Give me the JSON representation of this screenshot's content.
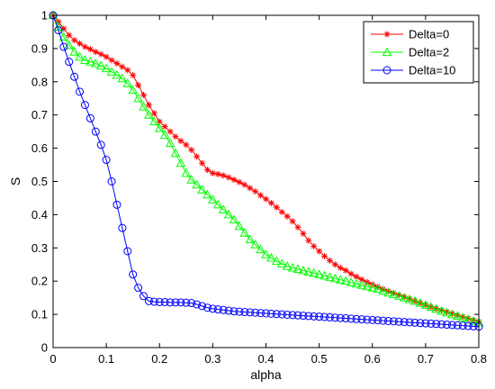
{
  "chart_data": {
    "type": "line",
    "title": "",
    "xlabel": "alpha",
    "ylabel": "S",
    "xlim": [
      0,
      0.8
    ],
    "ylim": [
      0,
      1
    ],
    "xticks": [
      0,
      0.1,
      0.2,
      0.3,
      0.4,
      0.5,
      0.6,
      0.7,
      0.8
    ],
    "yticks": [
      0,
      0.1,
      0.2,
      0.3,
      0.4,
      0.5,
      0.6,
      0.7,
      0.8,
      0.9,
      1
    ],
    "xtick_labels": [
      "0",
      "0.1",
      "0.2",
      "0.3",
      "0.4",
      "0.5",
      "0.6",
      "0.7",
      "0.8"
    ],
    "ytick_labels": [
      "0",
      "0.1",
      "0.2",
      "0.3",
      "0.4",
      "0.5",
      "0.6",
      "0.7",
      "0.8",
      "0.9",
      "1"
    ],
    "grid": false,
    "legend_position": "top-right",
    "series": [
      {
        "name": "Delta=0",
        "color": "#ff0000",
        "marker": "asterisk",
        "x": [
          0,
          0.01,
          0.02,
          0.03,
          0.04,
          0.05,
          0.06,
          0.07,
          0.08,
          0.09,
          0.1,
          0.11,
          0.12,
          0.13,
          0.14,
          0.15,
          0.16,
          0.17,
          0.18,
          0.19,
          0.2,
          0.21,
          0.22,
          0.23,
          0.24,
          0.25,
          0.26,
          0.27,
          0.28,
          0.29,
          0.3,
          0.31,
          0.32,
          0.33,
          0.34,
          0.35,
          0.36,
          0.37,
          0.38,
          0.39,
          0.4,
          0.41,
          0.42,
          0.43,
          0.44,
          0.45,
          0.46,
          0.47,
          0.48,
          0.49,
          0.5,
          0.51,
          0.52,
          0.53,
          0.54,
          0.55,
          0.56,
          0.57,
          0.58,
          0.59,
          0.6,
          0.61,
          0.62,
          0.63,
          0.64,
          0.65,
          0.66,
          0.67,
          0.68,
          0.69,
          0.7,
          0.71,
          0.72,
          0.73,
          0.74,
          0.75,
          0.76,
          0.77,
          0.78,
          0.79,
          0.8
        ],
        "y": [
          1.0,
          0.98,
          0.96,
          0.94,
          0.925,
          0.915,
          0.905,
          0.898,
          0.89,
          0.883,
          0.875,
          0.865,
          0.855,
          0.845,
          0.835,
          0.82,
          0.79,
          0.76,
          0.73,
          0.705,
          0.68,
          0.665,
          0.65,
          0.635,
          0.622,
          0.61,
          0.595,
          0.575,
          0.555,
          0.535,
          0.525,
          0.522,
          0.518,
          0.512,
          0.505,
          0.498,
          0.49,
          0.48,
          0.47,
          0.458,
          0.447,
          0.435,
          0.422,
          0.408,
          0.395,
          0.38,
          0.362,
          0.343,
          0.322,
          0.305,
          0.29,
          0.275,
          0.262,
          0.25,
          0.24,
          0.232,
          0.222,
          0.213,
          0.205,
          0.197,
          0.19,
          0.183,
          0.176,
          0.17,
          0.164,
          0.158,
          0.152,
          0.146,
          0.14,
          0.134,
          0.128,
          0.122,
          0.117,
          0.112,
          0.107,
          0.102,
          0.097,
          0.092,
          0.087,
          0.082,
          0.078
        ]
      },
      {
        "name": "Delta=2",
        "color": "#00ff00",
        "marker": "triangle",
        "x": [
          0,
          0.01,
          0.02,
          0.03,
          0.04,
          0.05,
          0.06,
          0.07,
          0.08,
          0.09,
          0.1,
          0.11,
          0.12,
          0.13,
          0.14,
          0.15,
          0.16,
          0.17,
          0.18,
          0.19,
          0.2,
          0.21,
          0.22,
          0.23,
          0.24,
          0.25,
          0.26,
          0.27,
          0.28,
          0.29,
          0.3,
          0.31,
          0.32,
          0.33,
          0.34,
          0.35,
          0.36,
          0.37,
          0.38,
          0.39,
          0.4,
          0.41,
          0.42,
          0.43,
          0.44,
          0.45,
          0.46,
          0.47,
          0.48,
          0.49,
          0.5,
          0.51,
          0.52,
          0.53,
          0.54,
          0.55,
          0.56,
          0.57,
          0.58,
          0.59,
          0.6,
          0.61,
          0.62,
          0.63,
          0.64,
          0.65,
          0.66,
          0.67,
          0.68,
          0.69,
          0.7,
          0.71,
          0.72,
          0.73,
          0.74,
          0.75,
          0.76,
          0.77,
          0.78,
          0.79,
          0.8
        ],
        "y": [
          1.0,
          0.965,
          0.935,
          0.91,
          0.89,
          0.875,
          0.865,
          0.86,
          0.855,
          0.848,
          0.84,
          0.83,
          0.82,
          0.81,
          0.795,
          0.775,
          0.75,
          0.725,
          0.7,
          0.68,
          0.66,
          0.64,
          0.615,
          0.585,
          0.555,
          0.525,
          0.505,
          0.49,
          0.475,
          0.46,
          0.445,
          0.43,
          0.415,
          0.4,
          0.385,
          0.365,
          0.345,
          0.325,
          0.31,
          0.295,
          0.28,
          0.27,
          0.26,
          0.252,
          0.245,
          0.24,
          0.236,
          0.232,
          0.228,
          0.224,
          0.22,
          0.216,
          0.212,
          0.208,
          0.204,
          0.2,
          0.196,
          0.192,
          0.188,
          0.184,
          0.18,
          0.176,
          0.17,
          0.165,
          0.16,
          0.155,
          0.15,
          0.145,
          0.14,
          0.134,
          0.128,
          0.122,
          0.116,
          0.11,
          0.105,
          0.1,
          0.095,
          0.09,
          0.085,
          0.08,
          0.075
        ]
      },
      {
        "name": "Delta=10",
        "color": "#0000ff",
        "marker": "circle",
        "x": [
          0,
          0.01,
          0.02,
          0.03,
          0.04,
          0.05,
          0.06,
          0.07,
          0.08,
          0.09,
          0.1,
          0.11,
          0.12,
          0.13,
          0.14,
          0.15,
          0.16,
          0.17,
          0.18,
          0.19,
          0.2,
          0.21,
          0.22,
          0.23,
          0.24,
          0.25,
          0.26,
          0.27,
          0.28,
          0.29,
          0.3,
          0.31,
          0.32,
          0.33,
          0.34,
          0.35,
          0.36,
          0.37,
          0.38,
          0.39,
          0.4,
          0.41,
          0.42,
          0.43,
          0.44,
          0.45,
          0.46,
          0.47,
          0.48,
          0.49,
          0.5,
          0.51,
          0.52,
          0.53,
          0.54,
          0.55,
          0.56,
          0.57,
          0.58,
          0.59,
          0.6,
          0.61,
          0.62,
          0.63,
          0.64,
          0.65,
          0.66,
          0.67,
          0.68,
          0.69,
          0.7,
          0.71,
          0.72,
          0.73,
          0.74,
          0.75,
          0.76,
          0.77,
          0.78,
          0.79,
          0.8
        ],
        "y": [
          1.0,
          0.955,
          0.905,
          0.86,
          0.815,
          0.77,
          0.73,
          0.69,
          0.65,
          0.61,
          0.565,
          0.5,
          0.43,
          0.36,
          0.29,
          0.22,
          0.18,
          0.155,
          0.14,
          0.138,
          0.137,
          0.137,
          0.136,
          0.136,
          0.136,
          0.135,
          0.134,
          0.13,
          0.125,
          0.12,
          0.117,
          0.115,
          0.113,
          0.111,
          0.109,
          0.108,
          0.107,
          0.106,
          0.105,
          0.104,
          0.103,
          0.102,
          0.101,
          0.1,
          0.099,
          0.098,
          0.097,
          0.096,
          0.095,
          0.094,
          0.093,
          0.092,
          0.091,
          0.09,
          0.089,
          0.088,
          0.087,
          0.086,
          0.085,
          0.084,
          0.083,
          0.082,
          0.081,
          0.08,
          0.079,
          0.078,
          0.077,
          0.076,
          0.075,
          0.074,
          0.073,
          0.072,
          0.071,
          0.07,
          0.069,
          0.068,
          0.067,
          0.066,
          0.065,
          0.064,
          0.063
        ]
      }
    ]
  }
}
